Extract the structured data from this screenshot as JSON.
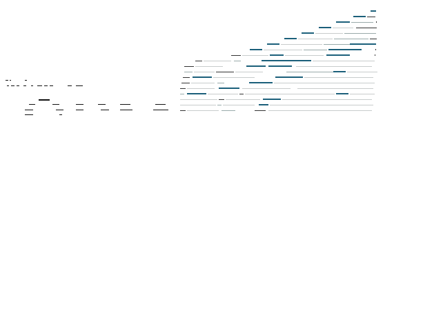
{
  "left": {
    "title_marks": 3,
    "toolbar_marks": 10
  },
  "accent_color": "#1b5f7a",
  "text_color": "#111111",
  "divider_color": "#c8cccc"
}
